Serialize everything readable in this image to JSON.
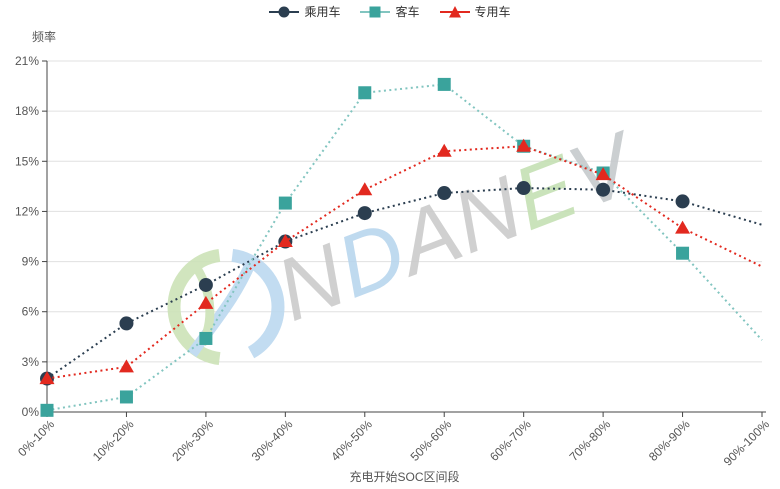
{
  "page": {
    "background": "#ffffff"
  },
  "chart_data": {
    "type": "line",
    "title": "",
    "xlabel": "充电开始SOC区间段",
    "ylabel": "频率",
    "categories": [
      "0%-10%",
      "10%-20%",
      "20%-30%",
      "30%-40%",
      "40%-50%",
      "50%-60%",
      "60%-70%",
      "70%-80%",
      "80%-90%",
      "90%-100%"
    ],
    "y_ticks": [
      "0%",
      "3%",
      "6%",
      "9%",
      "12%",
      "15%",
      "18%",
      "21%"
    ],
    "ylim": [
      0,
      21
    ],
    "y_step": 3,
    "grid": true,
    "legend_position": "top",
    "line_style": "dotted",
    "last_point_has_symbol": false,
    "series": [
      {
        "name": "乘用车",
        "symbol": "circle",
        "color": "#2b3e50",
        "line_color": "#2b3e50",
        "values": [
          2.0,
          5.3,
          7.6,
          10.2,
          11.9,
          13.1,
          13.4,
          13.3,
          12.6,
          11.2
        ]
      },
      {
        "name": "客车",
        "symbol": "square",
        "color": "#3aa39c",
        "line_color": "#82c5c0",
        "values": [
          0.1,
          0.9,
          4.4,
          12.5,
          19.1,
          19.6,
          15.9,
          14.3,
          9.5,
          4.3
        ]
      },
      {
        "name": "专用车",
        "symbol": "triangle",
        "color": "#e2291f",
        "line_color": "#e2291f",
        "values": [
          2.0,
          2.7,
          6.5,
          10.2,
          13.3,
          15.6,
          15.9,
          14.2,
          11.0,
          8.7
        ]
      }
    ],
    "colors": {
      "axis_line": "#444444",
      "grid_line": "#e0e0e0",
      "tick_label": "#555555"
    }
  },
  "watermark": {
    "text": "NDANEV",
    "letters": [
      {
        "ch": "N",
        "color": "#cbcbcb"
      },
      {
        "ch": "D",
        "color": "#b9d6ee"
      },
      {
        "ch": "A",
        "color": "#cbcbcb"
      },
      {
        "ch": "N",
        "color": "#cbcbcb"
      },
      {
        "ch": "E",
        "color": "#c5e0b4"
      },
      {
        "ch": "V",
        "color": "#c6cacd"
      }
    ],
    "logo_green": "#cde3b8",
    "logo_blue": "#bcd9f0"
  }
}
